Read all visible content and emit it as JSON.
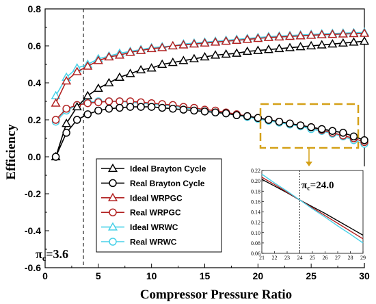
{
  "chart_data": {
    "type": "line",
    "xlabel": "Compressor Pressure Ratio",
    "ylabel": "Efficiency",
    "xlim": [
      0,
      30
    ],
    "ylim": [
      -0.6,
      0.8
    ],
    "x_ticks": [
      "0",
      "5",
      "10",
      "15",
      "20",
      "25",
      "30"
    ],
    "y_ticks": [
      "0.8",
      "0.6",
      "0.4",
      "0.2",
      "0.0",
      "-0.2",
      "-0.4",
      "-0.6"
    ],
    "grid": false,
    "legend_position": "lower-left",
    "x": [
      1,
      2,
      3,
      4,
      5,
      6,
      7,
      8,
      9,
      10,
      11,
      12,
      13,
      14,
      15,
      16,
      17,
      18,
      19,
      20,
      21,
      22,
      23,
      24,
      25,
      26,
      27,
      28,
      29,
      30
    ],
    "series": [
      {
        "name": "Ideal  Brayton Cycle",
        "marker": "triangle",
        "color": "#000000",
        "values": [
          0.0,
          0.18,
          0.27,
          0.33,
          0.37,
          0.4,
          0.43,
          0.45,
          0.47,
          0.48,
          0.5,
          0.51,
          0.52,
          0.53,
          0.54,
          0.55,
          0.555,
          0.56,
          0.57,
          0.575,
          0.58,
          0.585,
          0.59,
          0.595,
          0.6,
          0.605,
          0.61,
          0.615,
          0.62,
          0.625
        ]
      },
      {
        "name": "Real  Brayton Cycle",
        "marker": "circle",
        "color": "#000000",
        "values": [
          0.0,
          0.13,
          0.2,
          0.23,
          0.25,
          0.26,
          0.265,
          0.27,
          0.27,
          0.27,
          0.265,
          0.26,
          0.255,
          0.25,
          0.245,
          0.24,
          0.235,
          0.225,
          0.22,
          0.21,
          0.2,
          0.19,
          0.18,
          0.17,
          0.16,
          0.15,
          0.14,
          0.13,
          0.11,
          0.09
        ]
      },
      {
        "name": "Ideal WRPGC",
        "marker": "triangle",
        "color": "#b22222",
        "values": [
          0.29,
          0.41,
          0.46,
          0.49,
          0.52,
          0.54,
          0.55,
          0.565,
          0.575,
          0.585,
          0.59,
          0.6,
          0.605,
          0.61,
          0.615,
          0.62,
          0.625,
          0.63,
          0.635,
          0.64,
          0.645,
          0.648,
          0.651,
          0.654,
          0.657,
          0.66,
          0.662,
          0.664,
          0.666,
          0.668
        ]
      },
      {
        "name": "Real WRPGC",
        "marker": "circle",
        "color": "#b22222",
        "values": [
          0.2,
          0.26,
          0.28,
          0.29,
          0.295,
          0.3,
          0.3,
          0.3,
          0.295,
          0.29,
          0.285,
          0.28,
          0.27,
          0.265,
          0.255,
          0.25,
          0.24,
          0.23,
          0.22,
          0.21,
          0.2,
          0.19,
          0.18,
          0.17,
          0.16,
          0.145,
          0.13,
          0.115,
          0.1,
          0.08
        ]
      },
      {
        "name": "Ideal WRWC",
        "marker": "triangle",
        "color": "#48d1e8",
        "values": [
          0.33,
          0.43,
          0.48,
          0.5,
          0.53,
          0.545,
          0.56,
          0.57,
          0.58,
          0.59,
          0.595,
          0.6,
          0.61,
          0.615,
          0.62,
          0.625,
          0.63,
          0.635,
          0.64,
          0.645,
          0.65,
          0.653,
          0.656,
          0.659,
          0.662,
          0.665,
          0.667,
          0.669,
          0.671,
          0.673
        ]
      },
      {
        "name": "Real WRWC",
        "marker": "circle",
        "color": "#48d1e8",
        "values": [
          0.19,
          0.25,
          0.28,
          0.295,
          0.3,
          0.3,
          0.3,
          0.295,
          0.29,
          0.285,
          0.28,
          0.275,
          0.265,
          0.26,
          0.25,
          0.24,
          0.235,
          0.225,
          0.215,
          0.205,
          0.195,
          0.185,
          0.175,
          0.165,
          0.15,
          0.14,
          0.125,
          0.11,
          0.09,
          0.07
        ]
      }
    ],
    "annotations": [
      {
        "text_prefix": "π",
        "text_sub": "c",
        "text_suffix": "=3.6",
        "x": 3.6
      },
      {
        "text_prefix": "π",
        "text_sub": "c",
        "text_suffix": "=24.0",
        "x": 24.0
      }
    ],
    "inset": {
      "xlim": [
        21,
        29
      ],
      "ylim": [
        0.06,
        0.22
      ],
      "x_ticks": [
        "21",
        "22",
        "23",
        "24",
        "25",
        "26",
        "27",
        "28",
        "29"
      ],
      "y_ticks": [
        "0.22",
        "0.20",
        "0.18",
        "0.16",
        "0.14",
        "0.12",
        "0.10",
        "0.08",
        "0.06"
      ],
      "x": [
        21,
        22,
        23,
        24,
        25,
        26,
        27,
        28,
        29
      ],
      "series": [
        {
          "color": "#000000",
          "values": [
            0.203,
            0.19,
            0.177,
            0.163,
            0.15,
            0.137,
            0.123,
            0.109,
            0.095
          ]
        },
        {
          "color": "#b22222",
          "values": [
            0.207,
            0.193,
            0.178,
            0.163,
            0.148,
            0.133,
            0.118,
            0.103,
            0.088
          ]
        },
        {
          "color": "#48d1e8",
          "values": [
            0.213,
            0.196,
            0.18,
            0.163,
            0.146,
            0.13,
            0.113,
            0.097,
            0.08
          ]
        }
      ]
    }
  }
}
